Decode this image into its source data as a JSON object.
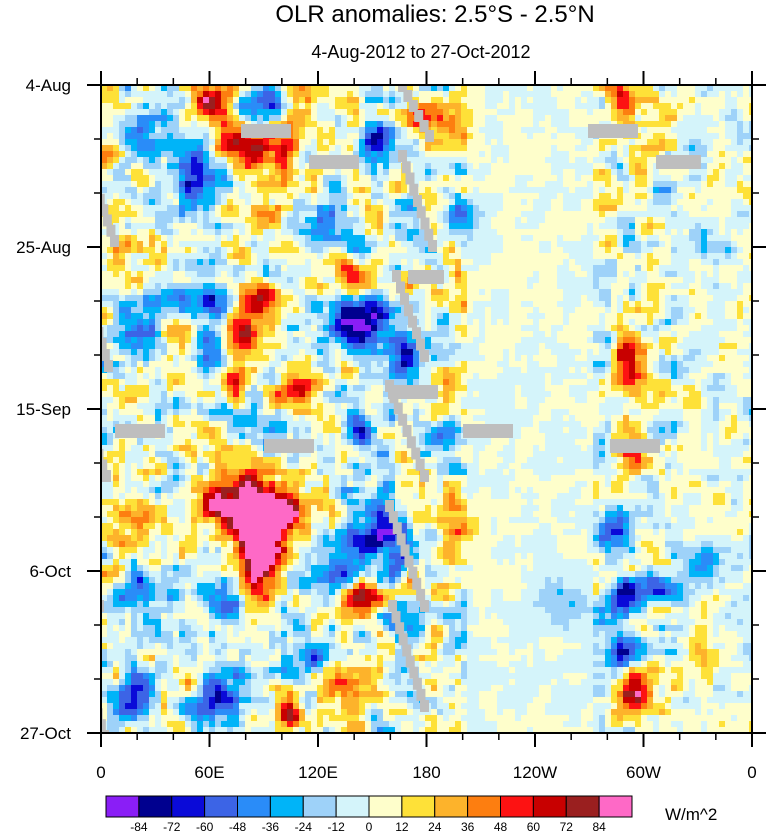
{
  "chart_data": {
    "type": "heatmap",
    "title": "OLR anomalies: 2.5°S - 2.5°N",
    "subtitle": "4-Aug-2012 to 27-Oct-2012",
    "x_ticks": [
      "0",
      "60E",
      "120E",
      "180",
      "120W",
      "60W",
      "0"
    ],
    "y_ticks": [
      "4-Aug",
      "25-Aug",
      "15-Sep",
      "6-Oct",
      "27-Oct"
    ],
    "xlim": [
      0,
      360
    ],
    "ylim": [
      "2012-08-04",
      "2012-10-27"
    ],
    "colorbar": {
      "labels": [
        "-84",
        "-72",
        "-60",
        "-48",
        "-36",
        "-24",
        "-12",
        "0",
        "12",
        "24",
        "36",
        "48",
        "60",
        "72",
        "84"
      ],
      "colors": [
        "#8a1ef6",
        "#00008f",
        "#0a0ad8",
        "#3c64e6",
        "#2a8cf8",
        "#00b4f8",
        "#9ed2f9",
        "#d4f4fa",
        "#fefecb",
        "#fee138",
        "#fdb32b",
        "#fd7e10",
        "#fd1212",
        "#c80000",
        "#9a1f1f",
        "#fe69c6"
      ],
      "units": "W/m^2"
    },
    "missing_color": "#bebebe",
    "missing_streaks": [
      [
        [
          67,
          97
        ],
        [
          90,
          153
        ]
      ],
      [
        [
          85,
          163
        ],
        [
          110,
          235
        ]
      ],
      [
        [
          72,
          250
        ],
        [
          104,
          360
        ]
      ],
      [
        [
          68,
          375
        ],
        [
          102,
          470
        ]
      ],
      [
        [
          60,
          500
        ],
        [
          95,
          600
        ]
      ],
      [
        [
          62,
          600
        ],
        [
          100,
          730
        ]
      ],
      [
        [
          398,
          80
        ],
        [
          425,
          130
        ]
      ],
      [
        [
          398,
          150
        ],
        [
          428,
          240
        ]
      ],
      [
        [
          392,
          270
        ],
        [
          420,
          350
        ]
      ],
      [
        [
          385,
          380
        ],
        [
          420,
          470
        ]
      ],
      [
        [
          385,
          500
        ],
        [
          420,
          600
        ]
      ],
      [
        [
          388,
          600
        ],
        [
          420,
          700
        ]
      ]
    ],
    "missing_bars": [
      [
        241,
        124,
        50
      ],
      [
        309,
        155,
        50
      ],
      [
        408,
        270,
        36
      ],
      [
        388,
        385,
        50
      ],
      [
        463,
        424,
        50
      ],
      [
        115,
        424,
        50
      ],
      [
        264,
        439,
        50
      ],
      [
        588,
        124,
        50
      ],
      [
        656,
        155,
        45
      ],
      [
        610,
        439,
        50
      ]
    ],
    "blobs": [
      [
        215,
        100,
        0.95,
        22,
        30
      ],
      [
        260,
        110,
        -0.9,
        28,
        28
      ],
      [
        260,
        140,
        1.0,
        35,
        30
      ],
      [
        375,
        140,
        -0.8,
        18,
        20
      ],
      [
        300,
        110,
        0.4,
        20,
        15
      ],
      [
        440,
        115,
        0.5,
        30,
        25
      ],
      [
        625,
        100,
        0.6,
        14,
        30
      ],
      [
        200,
        180,
        -0.8,
        20,
        40
      ],
      [
        265,
        210,
        0.5,
        25,
        20
      ],
      [
        320,
        230,
        -0.5,
        30,
        25
      ],
      [
        350,
        280,
        0.6,
        25,
        20
      ],
      [
        215,
        300,
        -0.8,
        22,
        22
      ],
      [
        260,
        300,
        0.8,
        25,
        18
      ],
      [
        360,
        320,
        -0.95,
        30,
        30
      ],
      [
        405,
        355,
        -0.85,
        20,
        18
      ],
      [
        240,
        335,
        0.9,
        22,
        20
      ],
      [
        230,
        380,
        0.7,
        20,
        20
      ],
      [
        300,
        390,
        0.7,
        20,
        20
      ],
      [
        215,
        360,
        -0.8,
        18,
        30
      ],
      [
        360,
        430,
        -0.7,
        18,
        20
      ],
      [
        260,
        430,
        -0.4,
        20,
        20
      ],
      [
        255,
        520,
        1.0,
        30,
        50
      ],
      [
        220,
        500,
        0.8,
        25,
        25
      ],
      [
        290,
        510,
        0.7,
        20,
        20
      ],
      [
        385,
        540,
        -0.9,
        25,
        30
      ],
      [
        330,
        580,
        -0.6,
        25,
        30
      ],
      [
        360,
        600,
        0.7,
        30,
        25
      ],
      [
        400,
        620,
        -0.7,
        18,
        25
      ],
      [
        225,
        600,
        -0.7,
        20,
        20
      ],
      [
        260,
        560,
        0.9,
        18,
        30
      ],
      [
        300,
        660,
        -0.6,
        25,
        25
      ],
      [
        350,
        680,
        0.6,
        25,
        20
      ],
      [
        290,
        710,
        1.0,
        12,
        20
      ],
      [
        220,
        700,
        -0.95,
        22,
        25
      ],
      [
        130,
        700,
        -0.6,
        25,
        25
      ],
      [
        140,
        600,
        -0.5,
        30,
        30
      ],
      [
        130,
        520,
        0.5,
        25,
        25
      ],
      [
        140,
        330,
        -0.6,
        25,
        30
      ],
      [
        120,
        260,
        0.4,
        20,
        25
      ],
      [
        145,
        130,
        -0.5,
        25,
        25
      ],
      [
        630,
        360,
        0.7,
        15,
        30
      ],
      [
        635,
        450,
        0.9,
        12,
        20
      ],
      [
        615,
        530,
        -0.6,
        15,
        25
      ],
      [
        620,
        600,
        -0.7,
        15,
        20
      ],
      [
        620,
        650,
        -0.8,
        20,
        20
      ],
      [
        635,
        695,
        0.9,
        15,
        25
      ],
      [
        650,
        590,
        -0.5,
        25,
        15
      ],
      [
        700,
        560,
        -0.4,
        30,
        20
      ],
      [
        460,
        220,
        -0.6,
        15,
        20
      ],
      [
        440,
        440,
        -0.6,
        18,
        20
      ],
      [
        455,
        530,
        0.5,
        20,
        20
      ],
      [
        700,
        650,
        0.3,
        20,
        20
      ],
      [
        560,
        600,
        -0.3,
        30,
        30
      ],
      [
        700,
        250,
        -0.3,
        25,
        25
      ]
    ]
  }
}
